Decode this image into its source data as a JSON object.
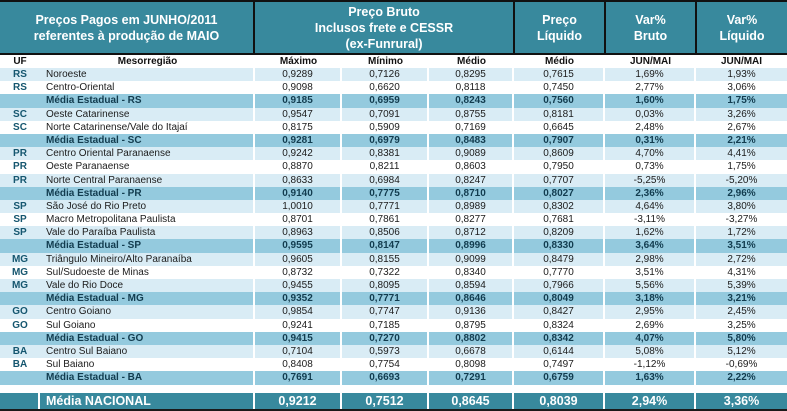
{
  "colors": {
    "header_teal": "#38899d",
    "row_pale_blue": "#d9ecf5",
    "row_state_average_blue": "#94cade"
  },
  "banner": {
    "title_line1": "Preços Pagos em JUNHO/2011",
    "title_line2": "referentes à produção de MAIO",
    "gross_price": "Preço Bruto\nInclusos frete e CESSR\n(ex-Funrural)",
    "net_price": "Preço\nLíquido",
    "var_gross": "Var%\nBruto",
    "var_net": "Var%\nLíquido"
  },
  "columns": [
    "UF",
    "Mesorregião",
    "Máximo",
    "Mínimo",
    "Médio",
    "Médio",
    "JUN/MAI",
    "JUN/MAI"
  ],
  "table": {
    "rows": [
      {
        "kind": "data",
        "uf": "RS",
        "mesorregiao": "Noroeste",
        "maximo": "0,9289",
        "minimo": "0,7126",
        "medio_bruto": "0,8295",
        "medio_liquido": "0,7615",
        "var_bruto": "1,69%",
        "var_liquido": "1,93%"
      },
      {
        "kind": "data",
        "uf": "RS",
        "mesorregiao": "Centro-Oriental",
        "maximo": "0,9098",
        "minimo": "0,6620",
        "medio_bruto": "0,8118",
        "medio_liquido": "0,7450",
        "var_bruto": "2,77%",
        "var_liquido": "3,06%"
      },
      {
        "kind": "media",
        "uf": "",
        "mesorregiao": "Média Estadual - RS",
        "maximo": "0,9185",
        "minimo": "0,6959",
        "medio_bruto": "0,8243",
        "medio_liquido": "0,7560",
        "var_bruto": "1,60%",
        "var_liquido": "1,75%"
      },
      {
        "kind": "data",
        "uf": "SC",
        "mesorregiao": "Oeste Catarinense",
        "maximo": "0,9547",
        "minimo": "0,7091",
        "medio_bruto": "0,8755",
        "medio_liquido": "0,8181",
        "var_bruto": "0,03%",
        "var_liquido": "3,26%"
      },
      {
        "kind": "data",
        "uf": "SC",
        "mesorregiao": "Norte Catarinense/Vale do Itajaí",
        "maximo": "0,8175",
        "minimo": "0,5909",
        "medio_bruto": "0,7169",
        "medio_liquido": "0,6645",
        "var_bruto": "2,48%",
        "var_liquido": "2,67%"
      },
      {
        "kind": "media",
        "uf": "",
        "mesorregiao": "Média Estadual - SC",
        "maximo": "0,9281",
        "minimo": "0,6979",
        "medio_bruto": "0,8483",
        "medio_liquido": "0,7907",
        "var_bruto": "0,31%",
        "var_liquido": "2,21%"
      },
      {
        "kind": "data",
        "uf": "PR",
        "mesorregiao": "Centro Oriental Paranaense",
        "maximo": "0,9242",
        "minimo": "0,8381",
        "medio_bruto": "0,9089",
        "medio_liquido": "0,8609",
        "var_bruto": "4,70%",
        "var_liquido": "4,41%"
      },
      {
        "kind": "data",
        "uf": "PR",
        "mesorregiao": "Oeste Paranaense",
        "maximo": "0,8870",
        "minimo": "0,8211",
        "medio_bruto": "0,8603",
        "medio_liquido": "0,7950",
        "var_bruto": "0,73%",
        "var_liquido": "1,75%"
      },
      {
        "kind": "data",
        "uf": "PR",
        "mesorregiao": "Norte Central Paranaense",
        "maximo": "0,8633",
        "minimo": "0,6984",
        "medio_bruto": "0,8247",
        "medio_liquido": "0,7707",
        "var_bruto": "-5,25%",
        "var_liquido": "-5,20%"
      },
      {
        "kind": "media",
        "uf": "",
        "mesorregiao": "Média Estadual - PR",
        "maximo": "0,9140",
        "minimo": "0,7775",
        "medio_bruto": "0,8710",
        "medio_liquido": "0,8027",
        "var_bruto": "2,36%",
        "var_liquido": "2,96%"
      },
      {
        "kind": "data",
        "uf": "SP",
        "mesorregiao": "São José do Rio Preto",
        "maximo": "1,0010",
        "minimo": "0,7771",
        "medio_bruto": "0,8989",
        "medio_liquido": "0,8302",
        "var_bruto": "4,64%",
        "var_liquido": "3,80%"
      },
      {
        "kind": "data",
        "uf": "SP",
        "mesorregiao": "Macro Metropolitana Paulista",
        "maximo": "0,8701",
        "minimo": "0,7861",
        "medio_bruto": "0,8277",
        "medio_liquido": "0,7681",
        "var_bruto": "-3,11%",
        "var_liquido": "-3,27%"
      },
      {
        "kind": "data",
        "uf": "SP",
        "mesorregiao": "Vale do Paraíba Paulista",
        "maximo": "0,8963",
        "minimo": "0,8506",
        "medio_bruto": "0,8712",
        "medio_liquido": "0,8209",
        "var_bruto": "1,62%",
        "var_liquido": "1,72%"
      },
      {
        "kind": "media",
        "uf": "",
        "mesorregiao": "Média Estadual - SP",
        "maximo": "0,9595",
        "minimo": "0,8147",
        "medio_bruto": "0,8996",
        "medio_liquido": "0,8330",
        "var_bruto": "3,64%",
        "var_liquido": "3,51%"
      },
      {
        "kind": "data",
        "uf": "MG",
        "mesorregiao": "Triângulo Mineiro/Alto Paranaíba",
        "maximo": "0,9605",
        "minimo": "0,8155",
        "medio_bruto": "0,9099",
        "medio_liquido": "0,8479",
        "var_bruto": "2,98%",
        "var_liquido": "2,72%"
      },
      {
        "kind": "data",
        "uf": "MG",
        "mesorregiao": "Sul/Sudoeste de Minas",
        "maximo": "0,8732",
        "minimo": "0,7322",
        "medio_bruto": "0,8340",
        "medio_liquido": "0,7770",
        "var_bruto": "3,51%",
        "var_liquido": "4,31%"
      },
      {
        "kind": "data",
        "uf": "MG",
        "mesorregiao": "Vale do Rio Doce",
        "maximo": "0,9455",
        "minimo": "0,8095",
        "medio_bruto": "0,8594",
        "medio_liquido": "0,7966",
        "var_bruto": "5,56%",
        "var_liquido": "5,39%"
      },
      {
        "kind": "media",
        "uf": "",
        "mesorregiao": "Média Estadual - MG",
        "maximo": "0,9352",
        "minimo": "0,7771",
        "medio_bruto": "0,8646",
        "medio_liquido": "0,8049",
        "var_bruto": "3,18%",
        "var_liquido": "3,21%"
      },
      {
        "kind": "data",
        "uf": "GO",
        "mesorregiao": "Centro Goiano",
        "maximo": "0,9854",
        "minimo": "0,7747",
        "medio_bruto": "0,9136",
        "medio_liquido": "0,8427",
        "var_bruto": "2,95%",
        "var_liquido": "2,45%"
      },
      {
        "kind": "data",
        "uf": "GO",
        "mesorregiao": "Sul Goiano",
        "maximo": "0,9241",
        "minimo": "0,7185",
        "medio_bruto": "0,8795",
        "medio_liquido": "0,8324",
        "var_bruto": "2,69%",
        "var_liquido": "3,25%"
      },
      {
        "kind": "media",
        "uf": "",
        "mesorregiao": "Média Estadual - GO",
        "maximo": "0,9415",
        "minimo": "0,7270",
        "medio_bruto": "0,8802",
        "medio_liquido": "0,8342",
        "var_bruto": "4,07%",
        "var_liquido": "5,80%"
      },
      {
        "kind": "data",
        "uf": "BA",
        "mesorregiao": "Centro Sul Baiano",
        "maximo": "0,7104",
        "minimo": "0,5973",
        "medio_bruto": "0,6678",
        "medio_liquido": "0,6144",
        "var_bruto": "5,08%",
        "var_liquido": "5,12%"
      },
      {
        "kind": "data",
        "uf": "BA",
        "mesorregiao": "Sul Baiano",
        "maximo": "0,8408",
        "minimo": "0,7754",
        "medio_bruto": "0,8098",
        "medio_liquido": "0,7497",
        "var_bruto": "-1,12%",
        "var_liquido": "-0,69%"
      },
      {
        "kind": "media",
        "uf": "",
        "mesorregiao": "Média Estadual - BA",
        "maximo": "0,7691",
        "minimo": "0,6693",
        "medio_bruto": "0,7291",
        "medio_liquido": "0,6759",
        "var_bruto": "1,63%",
        "var_liquido": "2,22%"
      }
    ],
    "national": {
      "label": "Média NACIONAL",
      "maximo": "0,9212",
      "minimo": "0,7512",
      "medio_bruto": "0,8645",
      "medio_liquido": "0,8039",
      "var_bruto": "2,94%",
      "var_liquido": "3,36%"
    }
  }
}
